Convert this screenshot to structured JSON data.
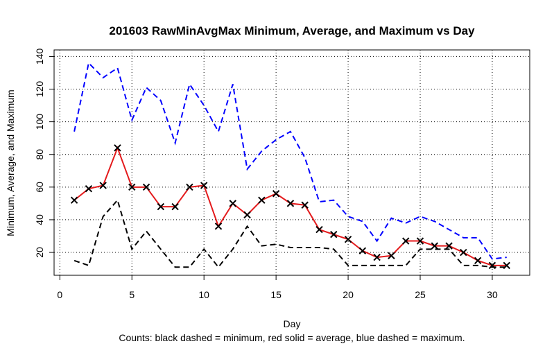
{
  "chart_data": {
    "type": "line",
    "title": "201603 RawMinAvgMax Minimum, Average, and Maximum vs Day",
    "x_label": "Day",
    "y_label": "Minimum, Average, and Maximum",
    "caption": "Counts: black dashed = minimum, red solid = average, blue dashed = maximum.",
    "x": [
      1,
      2,
      3,
      4,
      5,
      6,
      7,
      8,
      9,
      10,
      11,
      12,
      13,
      14,
      15,
      16,
      17,
      18,
      19,
      20,
      21,
      22,
      23,
      24,
      25,
      26,
      27,
      28,
      29,
      30,
      31
    ],
    "series": [
      {
        "color": "#000000",
        "dash": "dashed",
        "marker": "none",
        "values": [
          15,
          12,
          42,
          52,
          22,
          33,
          22,
          11,
          11,
          22,
          11,
          22,
          36,
          24,
          25,
          23,
          23,
          23,
          22,
          12,
          12,
          12,
          12,
          12,
          22,
          22,
          22,
          12,
          12,
          11,
          11
        ]
      },
      {
        "color": "#e41a1c",
        "dash": "solid",
        "marker": "x",
        "values": [
          52,
          59,
          61,
          84,
          60,
          60,
          48,
          48,
          60,
          61,
          36,
          50,
          43,
          52,
          56,
          50,
          49,
          34,
          31,
          28,
          21,
          17,
          18,
          27,
          27,
          24,
          24,
          20,
          15,
          12,
          12
        ]
      },
      {
        "color": "#0000ff",
        "dash": "dashed",
        "marker": "none",
        "values": [
          94,
          136,
          127,
          133,
          101,
          121,
          113,
          87,
          123,
          110,
          94,
          123,
          71,
          82,
          89,
          94,
          78,
          51,
          52,
          42,
          39,
          27,
          41,
          38,
          42,
          39,
          34,
          29,
          29,
          16,
          17
        ]
      }
    ],
    "xlim": [
      -0.4,
      32.6
    ],
    "ylim": [
      6,
      144
    ],
    "xticks": [
      0,
      5,
      10,
      15,
      20,
      25,
      30
    ],
    "yticks": [
      20,
      40,
      60,
      80,
      100,
      120,
      140
    ],
    "grid": true
  }
}
